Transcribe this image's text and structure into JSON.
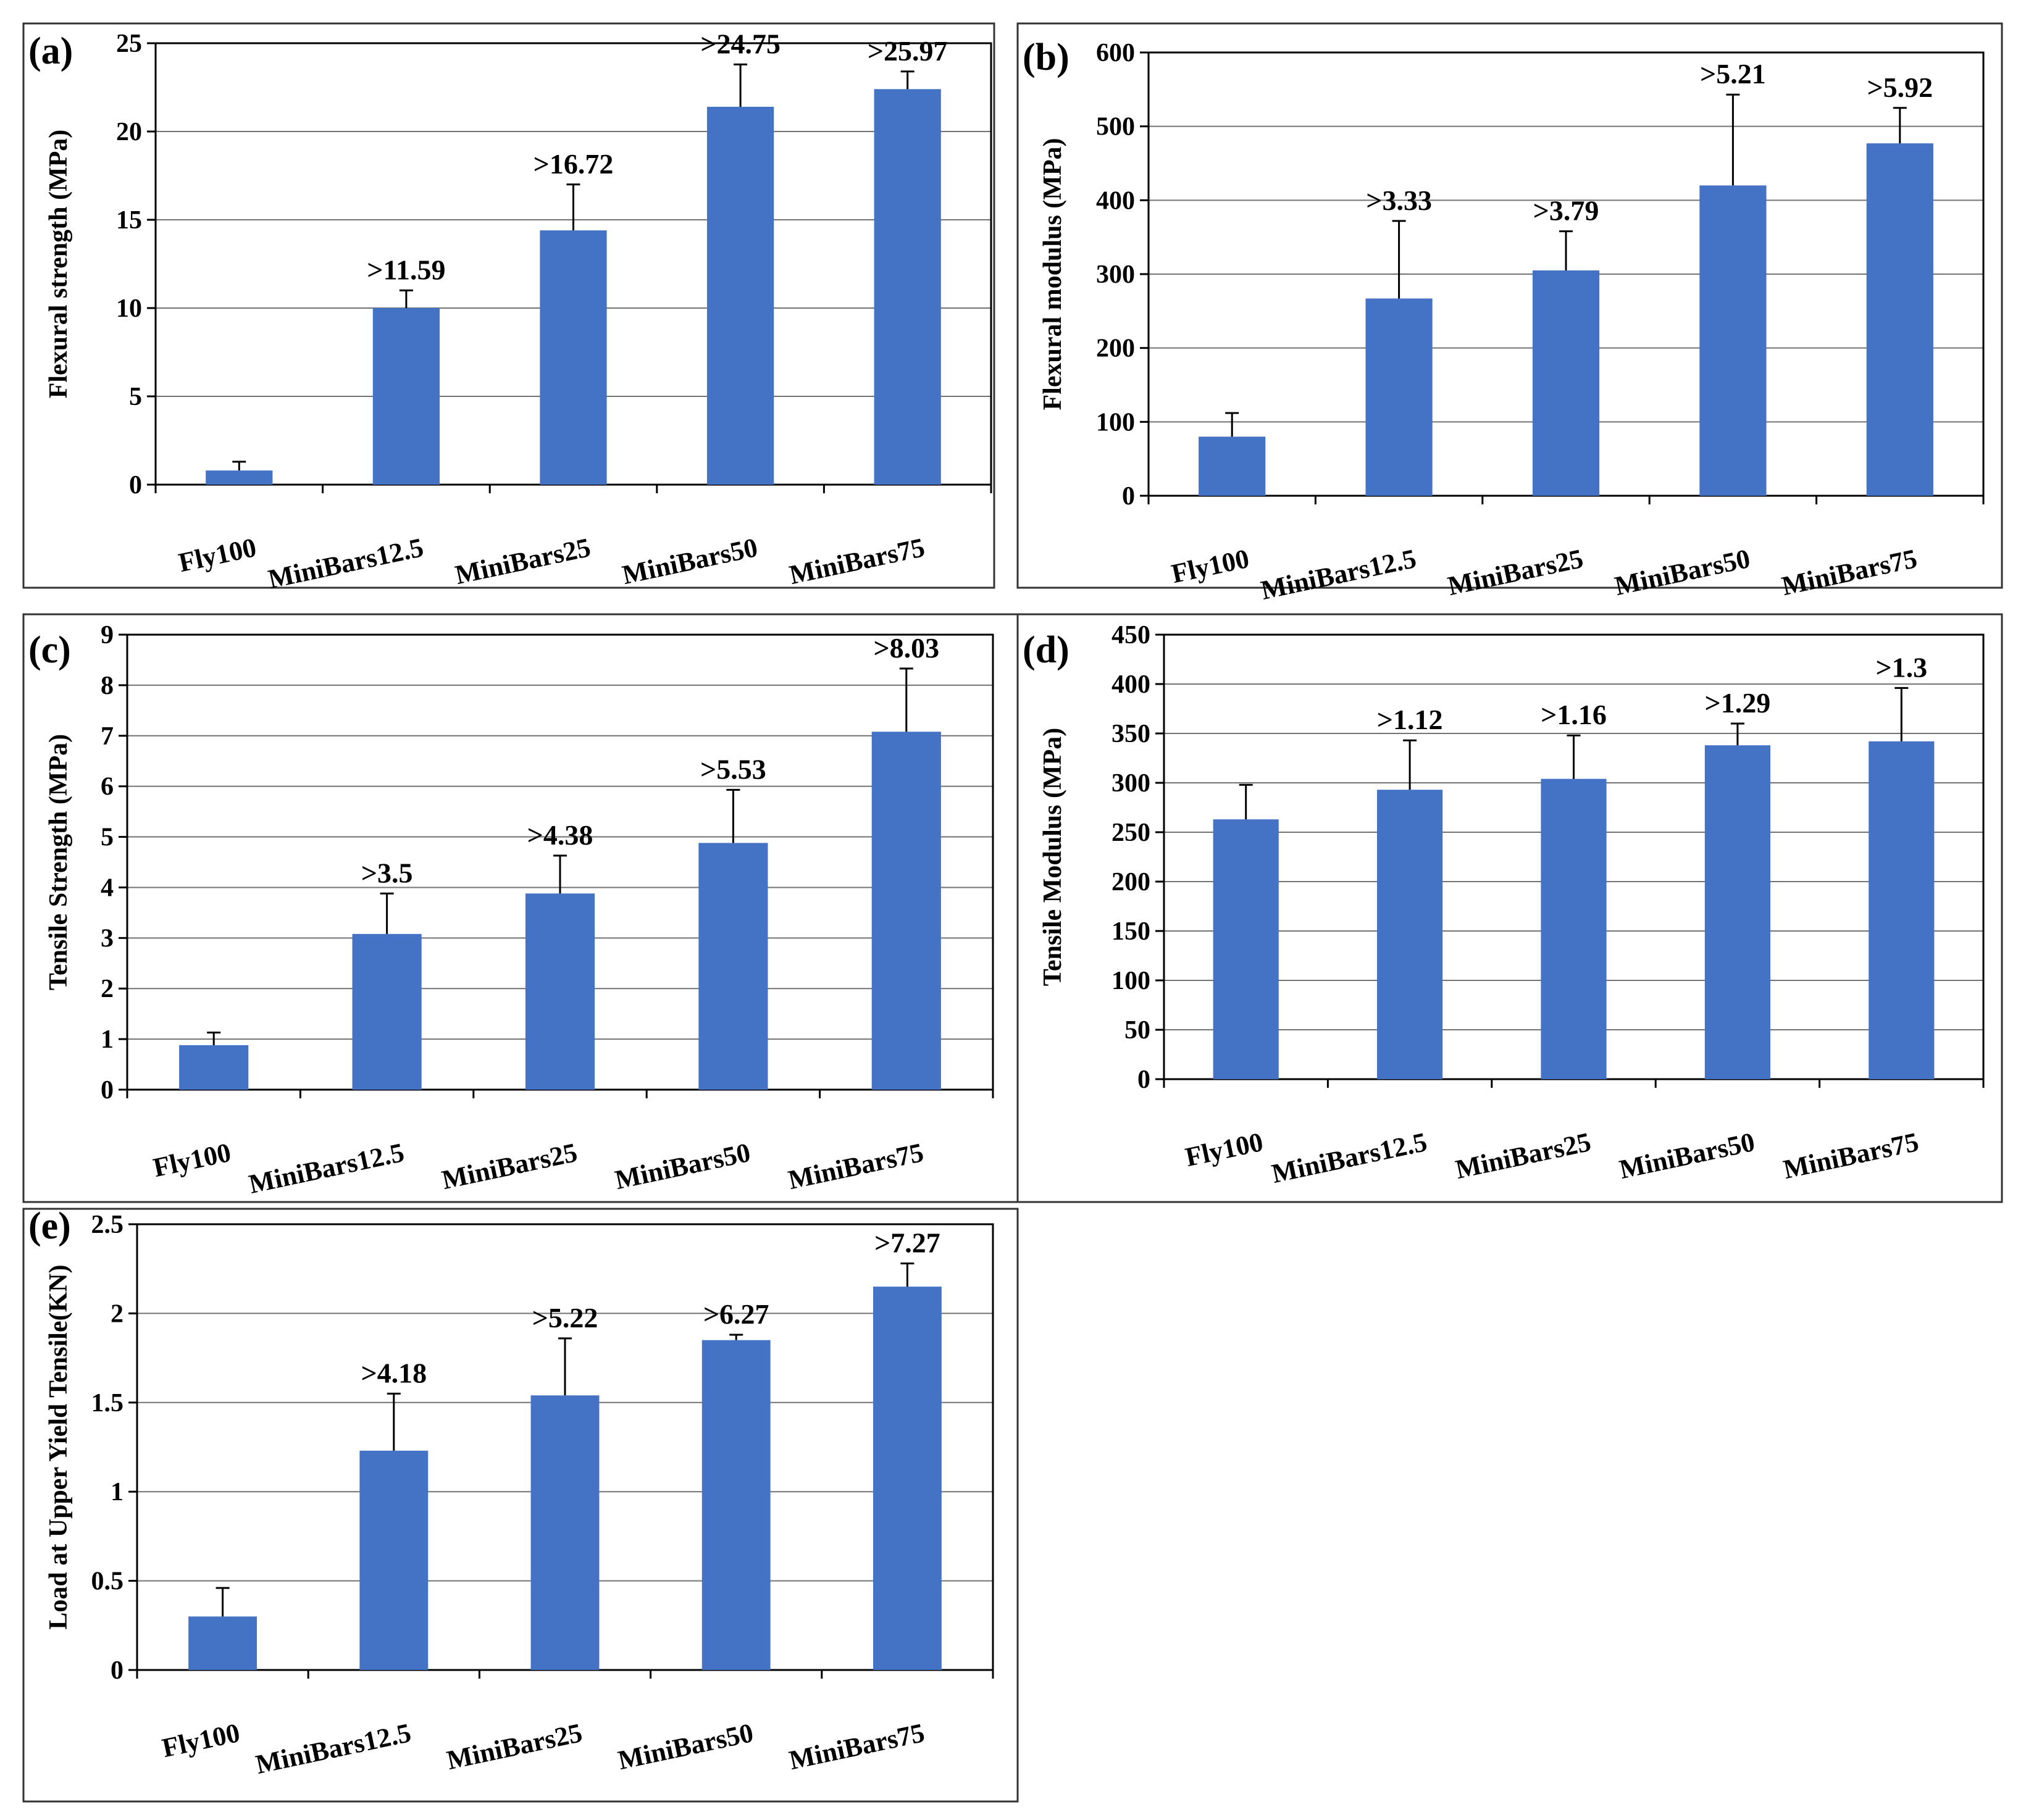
{
  "colors": {
    "bar": "#4472C4",
    "error_bar": "#000000",
    "grid": "#000000"
  },
  "chart_data": [
    {
      "type": "bar",
      "panel_label": "(a)",
      "title": "",
      "xlabel": "",
      "ylabel": "Flexural strength (MPa)",
      "categories": [
        "Fly100",
        "MiniBars12.5",
        "MiniBars25",
        "MiniBars50",
        "MiniBars75"
      ],
      "values": [
        0.8,
        10.0,
        14.4,
        21.4,
        22.4
      ],
      "error_upper": [
        1.3,
        11.0,
        17.0,
        23.8,
        23.4
      ],
      "data_labels": [
        "",
        ">11.59",
        ">16.72",
        ">24.75",
        ">25.97"
      ],
      "ylim": [
        0,
        25
      ],
      "yticks": [
        "0",
        "5",
        "10",
        "15",
        "20",
        "25"
      ],
      "grid": true
    },
    {
      "type": "bar",
      "panel_label": "(b)",
      "title": "",
      "xlabel": "",
      "ylabel": "Flexural modulus (MPa)",
      "categories": [
        "Fly100",
        "MiniBars12.5",
        "MiniBars25",
        "MiniBars50",
        "MiniBars75"
      ],
      "values": [
        80,
        267,
        305,
        420,
        477
      ],
      "error_upper": [
        112,
        372,
        358,
        543,
        525
      ],
      "data_labels": [
        "",
        ">3.33",
        ">3.79",
        ">5.21",
        ">5.92"
      ],
      "ylim": [
        0,
        600
      ],
      "yticks": [
        "0",
        "100",
        "200",
        "300",
        "400",
        "500",
        "600"
      ],
      "grid": true
    },
    {
      "type": "bar",
      "panel_label": "(c)",
      "title": "",
      "xlabel": "",
      "ylabel": "Tensile Strength (MPa)",
      "categories": [
        "Fly100",
        "MiniBars12.5",
        "MiniBars25",
        "MiniBars50",
        "MiniBars75"
      ],
      "values": [
        0.88,
        3.08,
        3.88,
        4.88,
        7.08
      ],
      "error_upper": [
        1.13,
        3.88,
        4.63,
        5.93,
        8.33
      ],
      "data_labels": [
        "",
        ">3.5",
        ">4.38",
        ">5.53",
        ">8.03"
      ],
      "ylim": [
        0,
        9
      ],
      "yticks": [
        "0",
        "1",
        "2",
        "3",
        "4",
        "5",
        "6",
        "7",
        "8",
        "9"
      ],
      "grid": true
    },
    {
      "type": "bar",
      "panel_label": "(d)",
      "title": "",
      "xlabel": "",
      "ylabel": "Tensile Modulus (MPa)",
      "categories": [
        "Fly100",
        "MiniBars12.5",
        "MiniBars25",
        "MiniBars50",
        "MiniBars75"
      ],
      "values": [
        263,
        293,
        304,
        338,
        342
      ],
      "error_upper": [
        298,
        343,
        348,
        360,
        396
      ],
      "data_labels": [
        "",
        ">1.12",
        ">1.16",
        ">1.29",
        ">1.3"
      ],
      "ylim": [
        0,
        450
      ],
      "yticks": [
        "0",
        "50",
        "100",
        "150",
        "200",
        "250",
        "300",
        "350",
        "400",
        "450"
      ],
      "grid": true
    },
    {
      "type": "bar",
      "panel_label": "(e)",
      "title": "",
      "xlabel": "",
      "ylabel": "Load at Upper Yield Tensile(KN)",
      "categories": [
        "Fly100",
        "MiniBars12.5",
        "MiniBars25",
        "MiniBars50",
        "MiniBars75"
      ],
      "values": [
        0.3,
        1.23,
        1.54,
        1.85,
        2.15
      ],
      "error_upper": [
        0.46,
        1.55,
        1.86,
        1.88,
        2.28
      ],
      "data_labels": [
        "",
        ">4.18",
        ">5.22",
        ">6.27",
        ">7.27"
      ],
      "ylim": [
        0,
        2.5
      ],
      "yticks": [
        "0",
        "0.5",
        "1",
        "1.5",
        "2",
        "2.5"
      ],
      "grid": true
    }
  ]
}
